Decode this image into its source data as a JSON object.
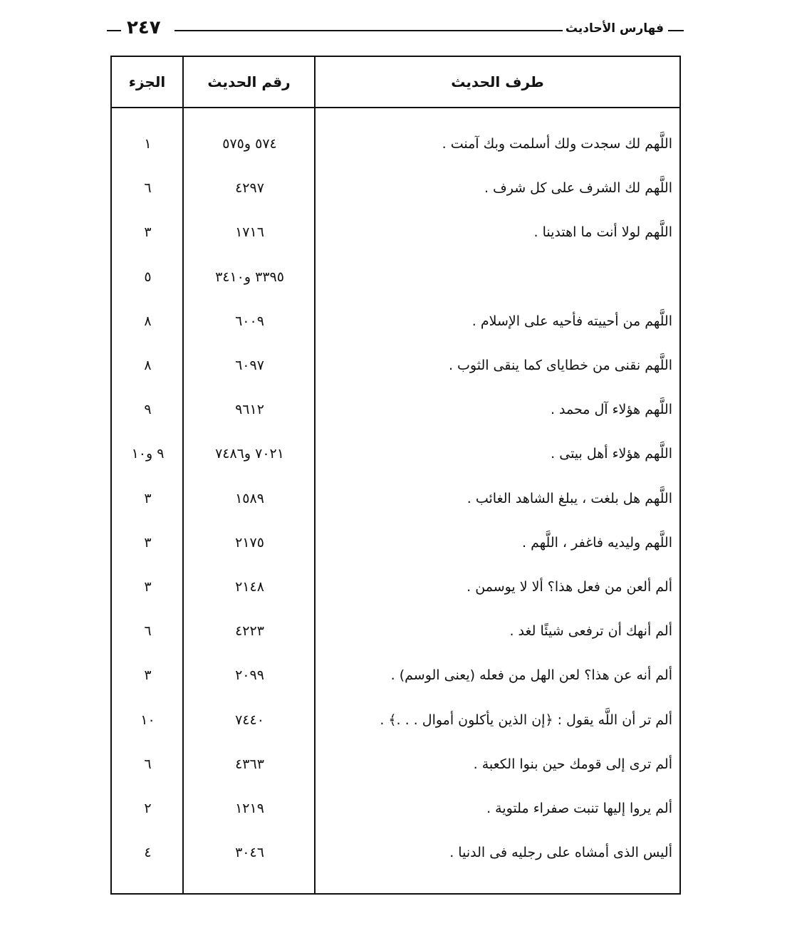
{
  "header": {
    "section_title": "فهارس الأحاديث",
    "page_number": "٢٤٧"
  },
  "table": {
    "columns": [
      "طرف الحديث",
      "رقم الحديث",
      "الجزء"
    ],
    "rows": [
      {
        "text": "اللَّهم لك سجدت ولك أسلمت وبك آمنت .",
        "number": "٥٧٤ و٥٧٥",
        "volume": "١"
      },
      {
        "text": "اللَّهم لك الشرف على كل شرف .",
        "number": "٤٢٩٧",
        "volume": "٦"
      },
      {
        "text": "اللَّهم لولا أنت ما اهتدينا .",
        "number": "١٧١٦",
        "volume": "٣"
      },
      {
        "text": "",
        "number": "٣٣٩٥ و٣٤١٠",
        "volume": "٥"
      },
      {
        "text": "اللَّهم من أحييته فأحيه على الإسلام .",
        "number": "٦٠٠٩",
        "volume": "٨"
      },
      {
        "text": "اللَّهم نقنى من خطاياى كما ينقى الثوب .",
        "number": "٦٠٩٧",
        "volume": "٨"
      },
      {
        "text": "اللَّهم هؤلاء آل محمد .",
        "number": "٩٦١٢",
        "volume": "٩"
      },
      {
        "text": "اللَّهم هؤلاء أهل بيتى .",
        "number": "٧٠٢١ و٧٤٨٦",
        "volume": "٩ و١٠"
      },
      {
        "text": "اللَّهم هل بلغت ، يبلغ الشاهد الغائب .",
        "number": "١٥٨٩",
        "volume": "٣"
      },
      {
        "text": "اللَّهم وليديه فاغفر ، اللَّهم .",
        "number": "٢١٧٥",
        "volume": "٣"
      },
      {
        "text": "ألم ألعن من فعل هذا؟ ألا لا يوسمن .",
        "number": "٢١٤٨",
        "volume": "٣"
      },
      {
        "text": "ألم أنهك أن ترفعى شيئًا لغد .",
        "number": "٤٢٢٣",
        "volume": "٦"
      },
      {
        "text": "ألم أنه عن هذا؟ لعن الهل من فعله (يعنى الوسم) .",
        "number": "٢٠٩٩",
        "volume": "٣"
      },
      {
        "text": "ألم تر أن اللَّه يقول : ﴿إن الذين يأكلون أموال . . .﴾ .",
        "number": "٧٤٤٠",
        "volume": "١٠"
      },
      {
        "text": "ألم ترى إلى قومك حين بنوا الكعبة .",
        "number": "٤٣٦٣",
        "volume": "٦"
      },
      {
        "text": "ألم يروا إليها تنبت صفراء ملتوية .",
        "number": "١٢١٩",
        "volume": "٢"
      },
      {
        "text": "أليس الذى أمشاه على رجليه فى الدنيا .",
        "number": "٣٠٤٦",
        "volume": "٤"
      }
    ]
  }
}
